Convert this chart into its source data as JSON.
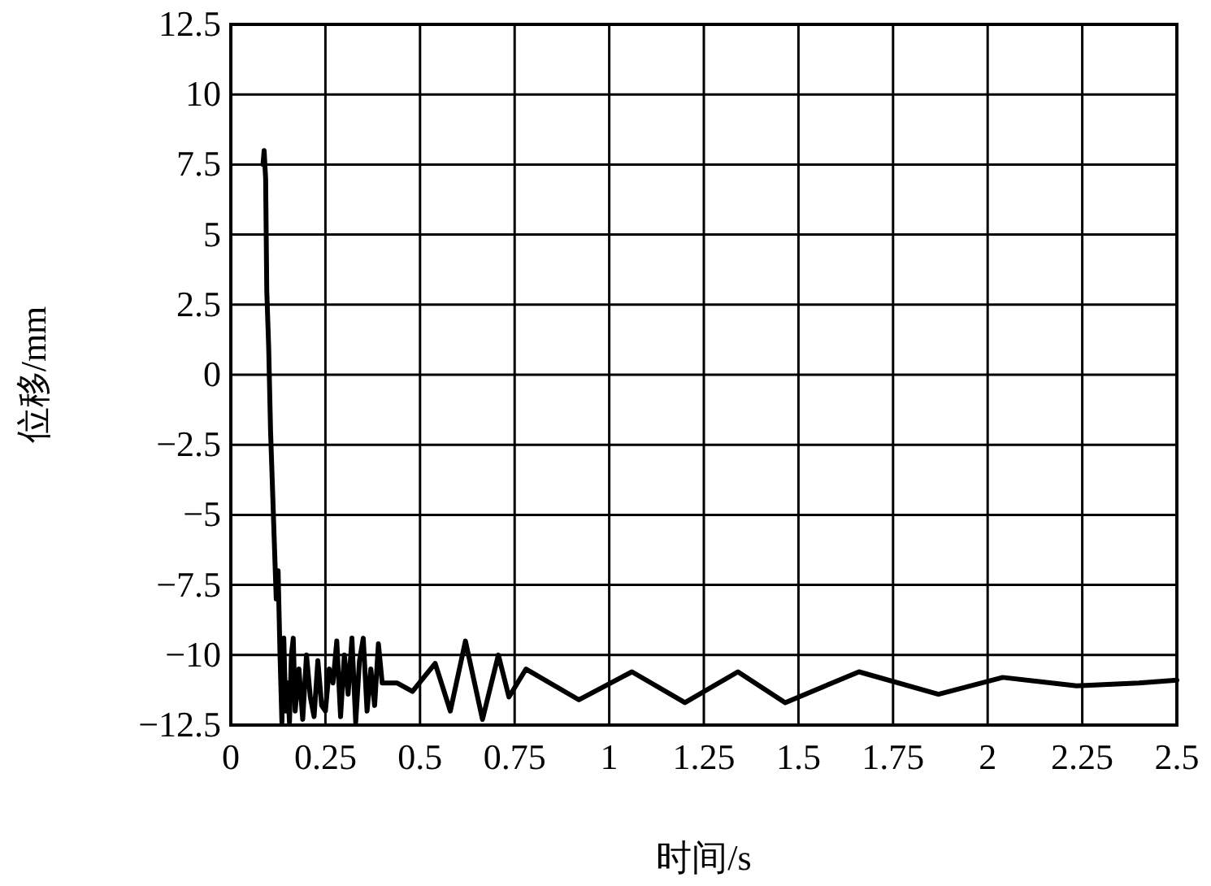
{
  "chart_data": {
    "type": "line",
    "xlabel": "时间/s",
    "ylabel": "位移/mm",
    "series": [
      {
        "color": "#000000",
        "x": [
          0.085,
          0.088,
          0.092,
          0.095,
          0.1,
          0.105,
          0.11,
          0.115,
          0.12,
          0.125,
          0.13,
          0.135,
          0.14,
          0.145,
          0.15,
          0.155,
          0.16,
          0.165,
          0.17,
          0.18,
          0.19,
          0.2,
          0.21,
          0.22,
          0.23,
          0.24,
          0.25,
          0.26,
          0.27,
          0.28,
          0.29,
          0.3,
          0.31,
          0.32,
          0.33,
          0.34,
          0.35,
          0.36,
          0.37,
          0.38,
          0.39,
          0.4,
          0.44,
          0.48,
          0.54,
          0.58,
          0.62,
          0.665,
          0.707,
          0.735,
          0.78,
          0.92,
          1.06,
          1.2,
          1.34,
          1.465,
          1.66,
          1.87,
          2.04,
          2.235,
          2.4,
          2.5
        ],
        "values": [
          7.5,
          8,
          7,
          3,
          1,
          -2,
          -4,
          -6,
          -8,
          -7,
          -10,
          -12.4,
          -9.4,
          -12,
          -11,
          -12.4,
          -10,
          -9.4,
          -12,
          -10.5,
          -12.3,
          -10,
          -11.5,
          -12.2,
          -10.2,
          -11.8,
          -12,
          -10.5,
          -11,
          -9.5,
          -12.2,
          -10,
          -11.4,
          -9.4,
          -12.4,
          -10.2,
          -9.4,
          -12,
          -10.5,
          -11.8,
          -9.6,
          -11,
          -11,
          -11.3,
          -10.3,
          -12,
          -9.5,
          -12.3,
          -10,
          -11.5,
          -10.5,
          -11.6,
          -10.6,
          -11.7,
          -10.6,
          -11.7,
          -10.6,
          -11.4,
          -10.8,
          -11.1,
          -11,
          -10.9
        ]
      }
    ],
    "xlim": [
      0,
      2.5
    ],
    "ylim": [
      -12.5,
      12.5
    ],
    "xticks": [
      0,
      0.25,
      0.5,
      0.75,
      1,
      1.25,
      1.5,
      1.75,
      2,
      2.25,
      2.5
    ],
    "yticks": [
      {
        "value": -12.5,
        "label": "−12.5"
      },
      {
        "value": -10,
        "label": "−10"
      },
      {
        "value": -7.5,
        "label": "−7.5"
      },
      {
        "value": -5,
        "label": "−5"
      },
      {
        "value": -2.5,
        "label": "−2.5"
      },
      0,
      2.5,
      5,
      7.5,
      10,
      12.5
    ],
    "grid": true,
    "marker": "none",
    "line_style": "solid"
  }
}
